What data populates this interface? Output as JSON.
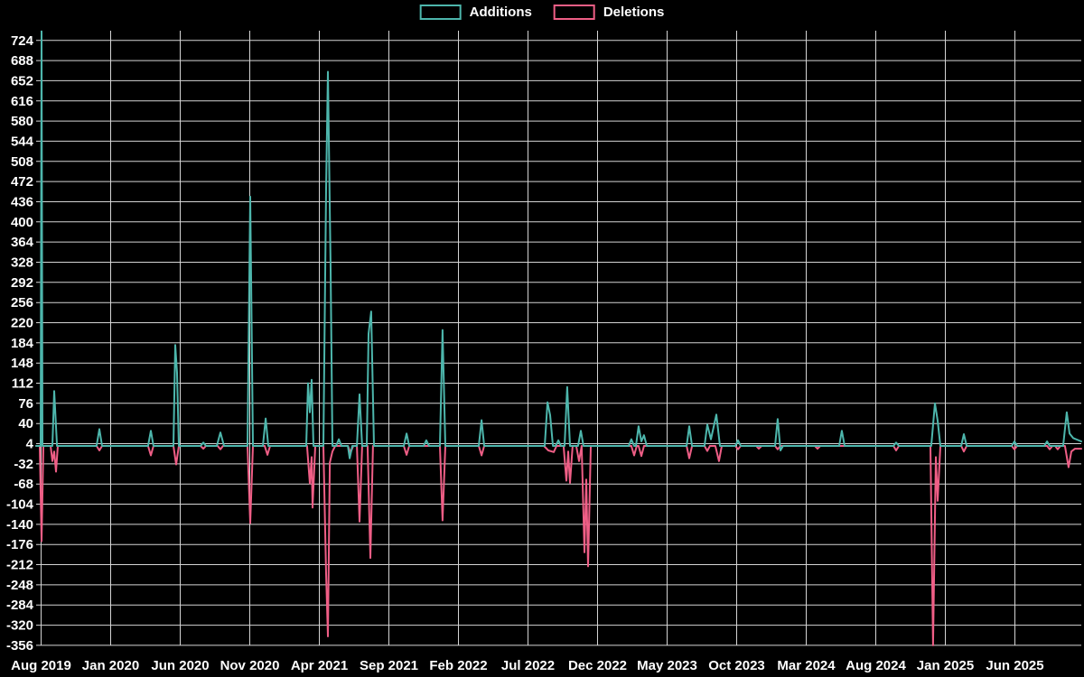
{
  "legend": {
    "additions_label": "Additions",
    "deletions_label": "Deletions"
  },
  "chart_data": {
    "type": "line",
    "title": "",
    "background": "#000000",
    "grid": true,
    "grid_color": "#d4d4d4",
    "text_color": "#ffffff",
    "legend_position": "top-center",
    "x_axis": {
      "start_label": "Aug 2019",
      "months_per_tick": 5,
      "tick_labels": [
        "Aug 2019",
        "Jan 2020",
        "Jun 2020",
        "Nov 2020",
        "Apr 2021",
        "Sep 2021",
        "Feb 2022",
        "Jul 2022",
        "Dec 2022",
        "May 2023",
        "Oct 2023",
        "Mar 2024",
        "Aug 2024",
        "Jan 2025",
        "Jun 2025"
      ]
    },
    "y_axis": {
      "min": -356,
      "max": 724,
      "step": 36,
      "ticks": [
        724,
        688,
        652,
        616,
        580,
        544,
        508,
        472,
        436,
        400,
        364,
        328,
        292,
        256,
        220,
        184,
        148,
        112,
        76,
        40,
        4,
        -32,
        -68,
        -104,
        -140,
        -176,
        -212,
        -248,
        -284,
        -320,
        -356
      ]
    },
    "point_x_unit": "months since Aug 2019",
    "series": [
      {
        "name": "Additions",
        "color": "#4db6ac",
        "points": [
          [
            -0.36,
            0
          ],
          [
            -0.03,
            0
          ],
          [
            0.03,
            740
          ],
          [
            0.1,
            0
          ],
          [
            0.81,
            0
          ],
          [
            0.94,
            98
          ],
          [
            1.14,
            0
          ],
          [
            3.99,
            0
          ],
          [
            4.19,
            30
          ],
          [
            4.38,
            0
          ],
          [
            7.69,
            0
          ],
          [
            7.89,
            27
          ],
          [
            8.08,
            0
          ],
          [
            9.51,
            0
          ],
          [
            9.64,
            180
          ],
          [
            9.77,
            130
          ],
          [
            9.9,
            0
          ],
          [
            11.46,
            0
          ],
          [
            11.66,
            6
          ],
          [
            11.85,
            0
          ],
          [
            12.63,
            0
          ],
          [
            12.89,
            24
          ],
          [
            13.15,
            0
          ],
          [
            14.84,
            0
          ],
          [
            15.03,
            445
          ],
          [
            15.23,
            0
          ],
          [
            15.94,
            0
          ],
          [
            16.14,
            49
          ],
          [
            16.33,
            0
          ],
          [
            19.06,
            0
          ],
          [
            19.19,
            112
          ],
          [
            19.32,
            60
          ],
          [
            19.45,
            118
          ],
          [
            19.58,
            0
          ],
          [
            20.29,
            0
          ],
          [
            20.49,
            460
          ],
          [
            20.62,
            668
          ],
          [
            20.81,
            315
          ],
          [
            20.94,
            0
          ],
          [
            21.2,
            0
          ],
          [
            21.4,
            12
          ],
          [
            21.59,
            0
          ],
          [
            22.05,
            0
          ],
          [
            22.18,
            -22
          ],
          [
            22.37,
            0
          ],
          [
            22.7,
            0
          ],
          [
            22.89,
            92
          ],
          [
            23.08,
            0
          ],
          [
            23.41,
            0
          ],
          [
            23.54,
            200
          ],
          [
            23.73,
            240
          ],
          [
            23.93,
            0
          ],
          [
            26.07,
            0
          ],
          [
            26.27,
            22
          ],
          [
            26.46,
            0
          ],
          [
            27.5,
            0
          ],
          [
            27.69,
            10
          ],
          [
            27.89,
            0
          ],
          [
            28.67,
            0
          ],
          [
            28.86,
            207
          ],
          [
            29.06,
            0
          ],
          [
            31.46,
            0
          ],
          [
            31.66,
            46
          ],
          [
            31.85,
            0
          ],
          [
            36.2,
            0
          ],
          [
            36.4,
            78
          ],
          [
            36.59,
            55
          ],
          [
            36.79,
            0
          ],
          [
            36.98,
            0
          ],
          [
            37.18,
            10
          ],
          [
            37.37,
            0
          ],
          [
            37.63,
            0
          ],
          [
            37.82,
            105
          ],
          [
            38.02,
            0
          ],
          [
            38.6,
            0
          ],
          [
            38.8,
            27
          ],
          [
            38.99,
            0
          ],
          [
            42.24,
            0
          ],
          [
            42.43,
            12
          ],
          [
            42.63,
            0
          ],
          [
            42.76,
            0
          ],
          [
            42.95,
            35
          ],
          [
            43.15,
            8
          ],
          [
            43.34,
            19
          ],
          [
            43.54,
            0
          ],
          [
            46.4,
            0
          ],
          [
            46.59,
            35
          ],
          [
            46.79,
            0
          ],
          [
            47.69,
            0
          ],
          [
            47.89,
            38
          ],
          [
            48.15,
            12
          ],
          [
            48.54,
            56
          ],
          [
            48.8,
            0
          ],
          [
            49.9,
            0
          ],
          [
            50.1,
            10
          ],
          [
            50.29,
            0
          ],
          [
            52.76,
            0
          ],
          [
            52.95,
            48
          ],
          [
            53.15,
            -8
          ],
          [
            53.34,
            0
          ],
          [
            57.37,
            0
          ],
          [
            57.56,
            27
          ],
          [
            57.76,
            0
          ],
          [
            61.27,
            0
          ],
          [
            61.46,
            6
          ],
          [
            61.66,
            0
          ],
          [
            63.99,
            0
          ],
          [
            64.25,
            76
          ],
          [
            64.45,
            45
          ],
          [
            64.64,
            0
          ],
          [
            66.14,
            0
          ],
          [
            66.33,
            21
          ],
          [
            66.53,
            0
          ],
          [
            69.77,
            0
          ],
          [
            69.97,
            8
          ],
          [
            70.16,
            0
          ],
          [
            72.11,
            0
          ],
          [
            72.31,
            8
          ],
          [
            72.5,
            0
          ],
          [
            73.47,
            0
          ],
          [
            73.73,
            60
          ],
          [
            73.93,
            22
          ],
          [
            74.19,
            14
          ],
          [
            74.77,
            8
          ]
        ]
      },
      {
        "name": "Deletions",
        "color": "#ef5e86",
        "points": [
          [
            -0.36,
            0
          ],
          [
            -0.1,
            0
          ],
          [
            0.03,
            -170
          ],
          [
            0.16,
            0
          ],
          [
            0.68,
            0
          ],
          [
            0.81,
            -27
          ],
          [
            0.94,
            -10
          ],
          [
            1.07,
            -46
          ],
          [
            1.2,
            0
          ],
          [
            3.99,
            0
          ],
          [
            4.19,
            -8
          ],
          [
            4.38,
            0
          ],
          [
            7.69,
            0
          ],
          [
            7.89,
            -17
          ],
          [
            8.08,
            0
          ],
          [
            9.51,
            0
          ],
          [
            9.71,
            -33
          ],
          [
            9.9,
            0
          ],
          [
            11.46,
            0
          ],
          [
            11.66,
            -5
          ],
          [
            11.85,
            0
          ],
          [
            12.69,
            0
          ],
          [
            12.89,
            -6
          ],
          [
            13.08,
            0
          ],
          [
            14.84,
            0
          ],
          [
            15.03,
            -138
          ],
          [
            15.23,
            0
          ],
          [
            16.07,
            0
          ],
          [
            16.27,
            -16
          ],
          [
            16.46,
            0
          ],
          [
            19.12,
            0
          ],
          [
            19.32,
            -67
          ],
          [
            19.45,
            -20
          ],
          [
            19.51,
            -110
          ],
          [
            19.71,
            0
          ],
          [
            20.29,
            0
          ],
          [
            20.49,
            -228
          ],
          [
            20.62,
            -340
          ],
          [
            20.75,
            -30
          ],
          [
            20.94,
            -10
          ],
          [
            21.14,
            0
          ],
          [
            22.05,
            0
          ],
          [
            22.24,
            -12
          ],
          [
            22.44,
            0
          ],
          [
            22.7,
            0
          ],
          [
            22.89,
            -135
          ],
          [
            23.08,
            0
          ],
          [
            23.47,
            0
          ],
          [
            23.67,
            -200
          ],
          [
            23.86,
            0
          ],
          [
            26.07,
            0
          ],
          [
            26.27,
            -16
          ],
          [
            26.46,
            0
          ],
          [
            28.67,
            0
          ],
          [
            28.86,
            -133
          ],
          [
            29.06,
            0
          ],
          [
            31.46,
            0
          ],
          [
            31.66,
            -17
          ],
          [
            31.85,
            0
          ],
          [
            36.14,
            0
          ],
          [
            36.46,
            -8
          ],
          [
            36.85,
            -11
          ],
          [
            37.05,
            0
          ],
          [
            37.56,
            0
          ],
          [
            37.76,
            -62
          ],
          [
            37.89,
            -10
          ],
          [
            38.02,
            -66
          ],
          [
            38.21,
            0
          ],
          [
            38.47,
            0
          ],
          [
            38.67,
            -27
          ],
          [
            38.86,
            0
          ],
          [
            39.06,
            -190
          ],
          [
            39.19,
            -60
          ],
          [
            39.32,
            -215
          ],
          [
            39.51,
            0
          ],
          [
            42.43,
            0
          ],
          [
            42.63,
            -17
          ],
          [
            42.82,
            0
          ],
          [
            42.95,
            0
          ],
          [
            43.15,
            -18
          ],
          [
            43.34,
            0
          ],
          [
            46.4,
            0
          ],
          [
            46.59,
            -22
          ],
          [
            46.79,
            0
          ],
          [
            47.69,
            0
          ],
          [
            47.89,
            -9
          ],
          [
            48.08,
            0
          ],
          [
            48.47,
            0
          ],
          [
            48.73,
            -27
          ],
          [
            48.93,
            0
          ],
          [
            49.9,
            0
          ],
          [
            50.1,
            -6
          ],
          [
            50.29,
            0
          ],
          [
            51.4,
            0
          ],
          [
            51.59,
            -5
          ],
          [
            51.79,
            0
          ],
          [
            52.76,
            0
          ],
          [
            52.95,
            -6
          ],
          [
            53.15,
            0
          ],
          [
            55.62,
            0
          ],
          [
            55.81,
            -5
          ],
          [
            56.01,
            0
          ],
          [
            61.27,
            0
          ],
          [
            61.46,
            -8
          ],
          [
            61.66,
            0
          ],
          [
            63.93,
            0
          ],
          [
            64.12,
            -356
          ],
          [
            64.32,
            -20
          ],
          [
            64.45,
            -98
          ],
          [
            64.64,
            0
          ],
          [
            66.14,
            0
          ],
          [
            66.33,
            -10
          ],
          [
            66.53,
            0
          ],
          [
            69.77,
            0
          ],
          [
            69.97,
            -6
          ],
          [
            70.16,
            0
          ],
          [
            72.31,
            0
          ],
          [
            72.5,
            -6
          ],
          [
            72.7,
            0
          ],
          [
            72.89,
            0
          ],
          [
            73.08,
            -6
          ],
          [
            73.28,
            0
          ],
          [
            73.6,
            0
          ],
          [
            73.86,
            -38
          ],
          [
            74.06,
            -10
          ],
          [
            74.32,
            -5
          ],
          [
            74.77,
            -5
          ]
        ]
      }
    ]
  }
}
